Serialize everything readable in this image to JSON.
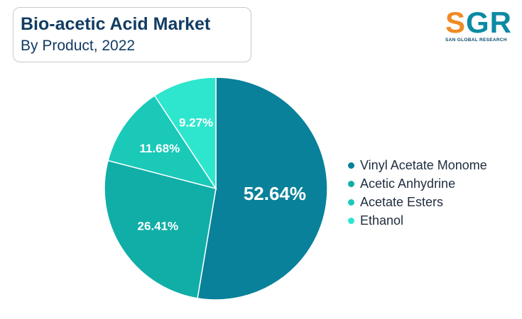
{
  "header": {
    "title": "Bio-acetic Acid Market",
    "subtitle": "By Product, 2022"
  },
  "logo": {
    "mark": "SGR",
    "tagline": "SAN GLOBAL RESEARCH"
  },
  "chart_data": {
    "type": "pie",
    "title": "Bio-acetic Acid Market",
    "subtitle": "By Product, 2022",
    "legend_position": "right",
    "slices": [
      {
        "label": "Vinyl Acetate Monome",
        "value": 52.64,
        "display": "52.64%",
        "color": "#09819a"
      },
      {
        "label": "Acetic Anhydrine",
        "value": 26.41,
        "display": "26.41%",
        "color": "#10aea7"
      },
      {
        "label": "Acetate Esters",
        "value": 11.68,
        "display": "11.68%",
        "color": "#1ac9b8"
      },
      {
        "label": "Ethanol",
        "value": 9.27,
        "display": "9.27%",
        "color": "#2ee6cd"
      }
    ]
  }
}
